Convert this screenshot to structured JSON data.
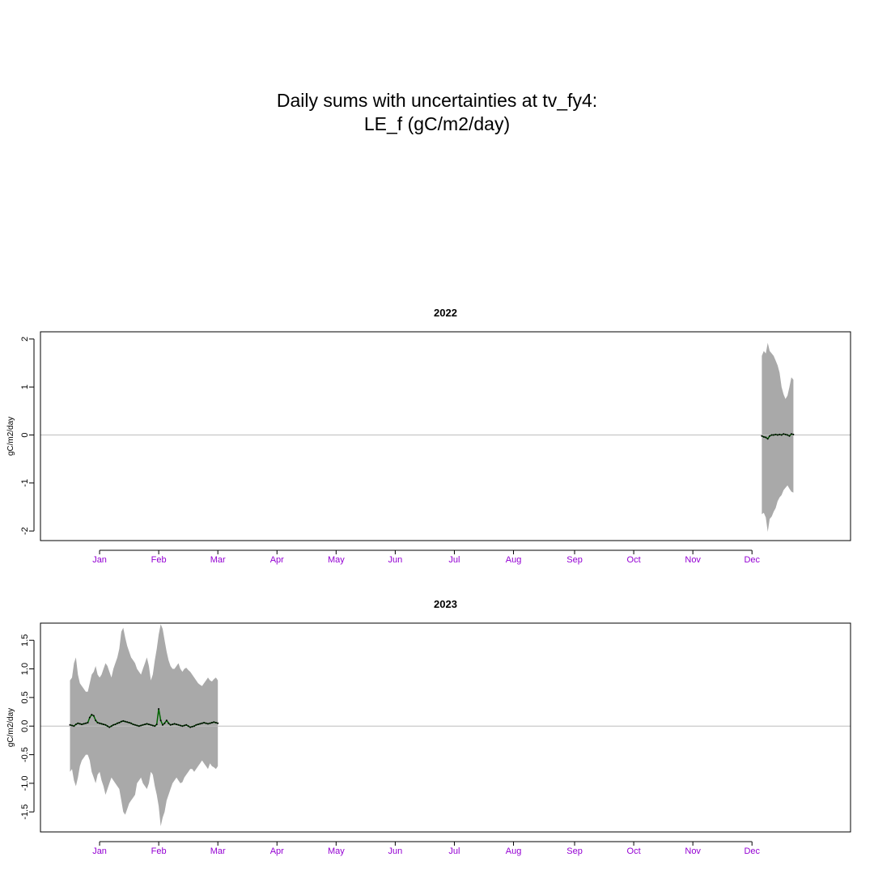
{
  "title": {
    "line1": "Daily sums with uncertainties at tv_fy4:",
    "line2": "LE_f (gC/m2/day)"
  },
  "colors": {
    "band": "#a9a9a9",
    "line": "#006400",
    "zero_line": "#bebebe",
    "month_labels": "#9400d3",
    "axis": "#000000"
  },
  "chart_data": [
    {
      "type": "area",
      "title": "2022",
      "ylabel": "gC/m2/day",
      "xlabel": "",
      "x_unit": "day_of_year",
      "xlim": [
        -15,
        396
      ],
      "ylim": [
        -2.2,
        2.15
      ],
      "yticks": [
        -2,
        -1,
        0,
        1,
        2
      ],
      "ytick_labels": [
        "-2",
        "-1",
        "0",
        "1",
        "2"
      ],
      "xticks": [
        15,
        45,
        75,
        105,
        135,
        165,
        195,
        225,
        256,
        286,
        316,
        346
      ],
      "xtick_labels": [
        "Jan",
        "Feb",
        "Mar",
        "Apr",
        "May",
        "Jun",
        "Jul",
        "Aug",
        "Sep",
        "Oct",
        "Nov",
        "Dec"
      ],
      "grid": false,
      "hline": 0,
      "series": [
        {
          "x": [
            351,
            352,
            353,
            354,
            355,
            356,
            357,
            358,
            359,
            360,
            361,
            362,
            363,
            364,
            365,
            366,
            367
          ],
          "lower": [
            -1.65,
            -1.62,
            -1.72,
            -2.02,
            -1.75,
            -1.7,
            -1.6,
            -1.52,
            -1.38,
            -1.3,
            -1.25,
            -1.15,
            -1.1,
            -1.05,
            -1.12,
            -1.18,
            -1.2
          ],
          "upper": [
            1.65,
            1.75,
            1.7,
            1.92,
            1.75,
            1.7,
            1.65,
            1.55,
            1.45,
            1.3,
            1.0,
            0.85,
            0.75,
            0.82,
            1.0,
            1.2,
            1.15
          ],
          "values": [
            -0.02,
            -0.04,
            -0.05,
            -0.08,
            -0.02,
            0.0,
            0.0,
            0.01,
            0.0,
            0.01,
            0.0,
            0.02,
            0.01,
            0.0,
            -0.02,
            0.02,
            0.01
          ]
        }
      ]
    },
    {
      "type": "area",
      "title": "2023",
      "ylabel": "gC/m2/day",
      "xlabel": "",
      "x_unit": "day_of_year",
      "xlim": [
        -15,
        396
      ],
      "ylim": [
        -1.85,
        1.8
      ],
      "yticks": [
        -1.5,
        -1.0,
        -0.5,
        0.0,
        0.5,
        1.0,
        1.5
      ],
      "ytick_labels": [
        "-1.5",
        "-1.0",
        "-0.5",
        "0.0",
        "0.5",
        "1.0",
        "1.5"
      ],
      "xticks": [
        15,
        45,
        75,
        105,
        135,
        165,
        195,
        225,
        256,
        286,
        316,
        346
      ],
      "xtick_labels": [
        "Jan",
        "Feb",
        "Mar",
        "Apr",
        "May",
        "Jun",
        "Jul",
        "Aug",
        "Sep",
        "Oct",
        "Nov",
        "Dec"
      ],
      "grid": false,
      "hline": 0,
      "series": [
        {
          "x": [
            0,
            1,
            2,
            3,
            4,
            5,
            6,
            7,
            8,
            9,
            10,
            11,
            12,
            13,
            14,
            15,
            16,
            17,
            18,
            19,
            20,
            21,
            22,
            23,
            24,
            25,
            26,
            27,
            28,
            29,
            30,
            31,
            32,
            33,
            34,
            35,
            36,
            37,
            38,
            39,
            40,
            41,
            42,
            43,
            44,
            45,
            46,
            47,
            48,
            49,
            50,
            51,
            52,
            53,
            54,
            55,
            56,
            57,
            58,
            59,
            60,
            61,
            62,
            63,
            64,
            65,
            66,
            67,
            68,
            69,
            70,
            71,
            72,
            73,
            74,
            75
          ],
          "lower": [
            -0.8,
            -0.75,
            -0.95,
            -1.05,
            -0.9,
            -0.7,
            -0.6,
            -0.55,
            -0.5,
            -0.5,
            -0.6,
            -0.8,
            -0.9,
            -1.0,
            -0.85,
            -0.8,
            -0.95,
            -1.05,
            -1.2,
            -1.1,
            -1.0,
            -0.9,
            -0.95,
            -1.0,
            -1.05,
            -1.1,
            -1.3,
            -1.5,
            -1.55,
            -1.45,
            -1.35,
            -1.3,
            -1.25,
            -1.2,
            -1.0,
            -0.95,
            -0.9,
            -1.0,
            -1.05,
            -1.1,
            -1.0,
            -0.8,
            -0.85,
            -1.05,
            -1.2,
            -1.4,
            -1.75,
            -1.6,
            -1.5,
            -1.3,
            -1.2,
            -1.1,
            -1.0,
            -0.95,
            -0.9,
            -0.95,
            -1.0,
            -0.98,
            -0.9,
            -0.85,
            -0.8,
            -0.75,
            -0.75,
            -0.8,
            -0.75,
            -0.7,
            -0.65,
            -0.6,
            -0.65,
            -0.7,
            -0.75,
            -0.65,
            -0.7,
            -0.72,
            -0.75,
            -0.7
          ],
          "upper": [
            0.8,
            0.85,
            1.1,
            1.2,
            0.9,
            0.75,
            0.7,
            0.65,
            0.6,
            0.6,
            0.75,
            0.9,
            0.95,
            1.05,
            0.9,
            0.85,
            0.9,
            1.0,
            1.1,
            1.05,
            0.95,
            0.85,
            1.0,
            1.1,
            1.2,
            1.35,
            1.65,
            1.72,
            1.55,
            1.4,
            1.3,
            1.2,
            1.15,
            1.1,
            1.0,
            0.95,
            0.9,
            1.0,
            1.1,
            1.2,
            1.05,
            0.8,
            0.9,
            1.15,
            1.35,
            1.6,
            1.78,
            1.7,
            1.5,
            1.3,
            1.15,
            1.05,
            1.0,
            1.0,
            1.05,
            1.1,
            1.0,
            0.95,
            1.0,
            1.02,
            0.98,
            0.95,
            0.9,
            0.85,
            0.8,
            0.75,
            0.72,
            0.7,
            0.75,
            0.8,
            0.85,
            0.8,
            0.78,
            0.82,
            0.85,
            0.8
          ],
          "values": [
            0.02,
            0.01,
            0.0,
            0.03,
            0.05,
            0.04,
            0.03,
            0.04,
            0.05,
            0.06,
            0.15,
            0.2,
            0.18,
            0.1,
            0.06,
            0.05,
            0.04,
            0.03,
            0.02,
            0.0,
            -0.02,
            0.0,
            0.02,
            0.03,
            0.05,
            0.06,
            0.08,
            0.09,
            0.08,
            0.07,
            0.06,
            0.05,
            0.03,
            0.02,
            0.01,
            0.0,
            0.01,
            0.02,
            0.03,
            0.04,
            0.03,
            0.02,
            0.01,
            0.0,
            0.03,
            0.3,
            0.1,
            0.02,
            0.05,
            0.1,
            0.05,
            0.02,
            0.03,
            0.04,
            0.03,
            0.02,
            0.01,
            0.0,
            0.01,
            0.02,
            0.0,
            -0.02,
            -0.01,
            0.0,
            0.02,
            0.03,
            0.04,
            0.05,
            0.06,
            0.05,
            0.04,
            0.05,
            0.06,
            0.07,
            0.06,
            0.05
          ]
        }
      ]
    }
  ]
}
